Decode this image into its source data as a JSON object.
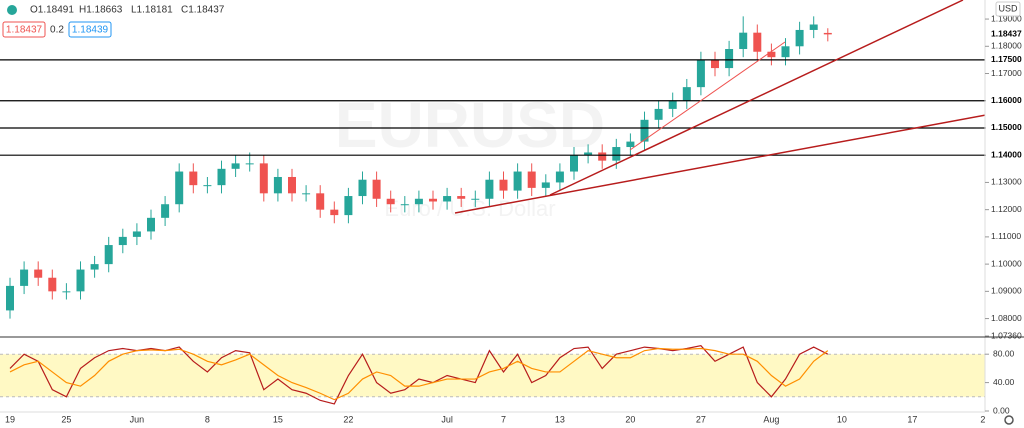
{
  "header": {
    "ohlc": [
      "O1.18491",
      "H1.18663",
      "L1.18181",
      "C1.18437"
    ],
    "sell": "1.18437",
    "spread": "0.2",
    "buy": "1.18439"
  },
  "chart_data": [
    {
      "type": "candlestick",
      "title": "EURUSD",
      "subtitle": "Euro / U.S. Dollar",
      "currency": "USD",
      "categories": [
        "19",
        null,
        null,
        null,
        "25",
        null,
        null,
        null,
        null,
        "Jun",
        null,
        null,
        null,
        null,
        "8",
        null,
        null,
        null,
        null,
        "15",
        null,
        null,
        null,
        null,
        "22",
        null,
        null,
        null,
        null,
        null,
        null,
        "Jul",
        null,
        null,
        null,
        "7",
        null,
        null,
        null,
        "13",
        null,
        null,
        null,
        null,
        "20",
        null,
        null,
        null,
        null,
        "27",
        null,
        null,
        null,
        null,
        "Aug",
        null,
        null,
        null,
        null,
        "10",
        null,
        null,
        null,
        null,
        "17",
        null,
        null,
        null,
        null,
        "2"
      ],
      "open": [
        1.083,
        1.092,
        1.098,
        1.095,
        1.09,
        1.09,
        1.098,
        1.1,
        1.107,
        1.11,
        1.112,
        1.117,
        1.122,
        1.134,
        1.129,
        1.129,
        1.135,
        1.137,
        1.137,
        1.126,
        1.132,
        1.126,
        1.126,
        1.12,
        1.118,
        1.125,
        1.131,
        1.124,
        1.122,
        1.122,
        1.124,
        1.123,
        1.125,
        1.124,
        1.124,
        1.131,
        1.127,
        1.134,
        1.128,
        1.13,
        1.134,
        1.14,
        1.141,
        1.138,
        1.143,
        1.145,
        1.153,
        1.157,
        1.16,
        1.165,
        1.175,
        1.172,
        1.179,
        1.185,
        1.178,
        1.176,
        1.18,
        1.186,
        1.18491,
        null,
        null,
        null,
        null,
        null,
        null,
        null,
        null,
        null,
        null,
        null
      ],
      "high": [
        1.095,
        1.101,
        1.101,
        1.098,
        1.093,
        1.101,
        1.103,
        1.11,
        1.113,
        1.115,
        1.12,
        1.125,
        1.137,
        1.137,
        1.132,
        1.138,
        1.14,
        1.141,
        1.14,
        1.135,
        1.135,
        1.129,
        1.129,
        1.123,
        1.128,
        1.134,
        1.134,
        1.127,
        1.125,
        1.127,
        1.127,
        1.128,
        1.128,
        1.127,
        1.134,
        1.134,
        1.137,
        1.137,
        1.133,
        1.137,
        1.143,
        1.144,
        1.144,
        1.146,
        1.148,
        1.156,
        1.16,
        1.163,
        1.168,
        1.178,
        1.178,
        1.182,
        1.191,
        1.188,
        1.181,
        1.183,
        1.189,
        1.191,
        1.18663,
        null,
        null,
        null,
        null,
        null,
        null,
        null,
        null,
        null,
        null,
        null
      ],
      "low": [
        1.08,
        1.089,
        1.092,
        1.087,
        1.087,
        1.087,
        1.095,
        1.097,
        1.104,
        1.107,
        1.109,
        1.114,
        1.119,
        1.126,
        1.126,
        1.126,
        1.132,
        1.134,
        1.123,
        1.123,
        1.123,
        1.123,
        1.117,
        1.115,
        1.115,
        1.122,
        1.121,
        1.119,
        1.119,
        1.119,
        1.12,
        1.12,
        1.121,
        1.121,
        1.121,
        1.124,
        1.124,
        1.125,
        1.125,
        1.127,
        1.131,
        1.137,
        1.135,
        1.135,
        1.14,
        1.142,
        1.15,
        1.154,
        1.157,
        1.162,
        1.169,
        1.169,
        1.176,
        1.175,
        1.173,
        1.173,
        1.177,
        1.183,
        1.18181,
        null,
        null,
        null,
        null,
        null,
        null,
        null,
        null,
        null,
        null,
        null
      ],
      "close": [
        1.092,
        1.098,
        1.095,
        1.09,
        1.09,
        1.098,
        1.1,
        1.107,
        1.11,
        1.112,
        1.117,
        1.122,
        1.134,
        1.129,
        1.129,
        1.135,
        1.137,
        1.137,
        1.126,
        1.132,
        1.126,
        1.126,
        1.12,
        1.118,
        1.125,
        1.131,
        1.124,
        1.122,
        1.122,
        1.124,
        1.123,
        1.125,
        1.124,
        1.124,
        1.131,
        1.127,
        1.134,
        1.128,
        1.13,
        1.134,
        1.14,
        1.141,
        1.138,
        1.143,
        1.145,
        1.153,
        1.157,
        1.16,
        1.165,
        1.175,
        1.172,
        1.179,
        1.185,
        1.178,
        1.176,
        1.18,
        1.186,
        1.188,
        1.18437,
        null,
        null,
        null,
        null,
        null,
        null,
        null,
        null,
        null,
        null,
        null
      ],
      "up_color": "#26a69a",
      "down_color": "#ef5350",
      "ylim": [
        1.0736,
        1.197
      ],
      "yticks": [
        {
          "value": 1.19,
          "label": "1.19000"
        },
        {
          "value": 1.18,
          "label": "1.18000"
        },
        {
          "value": 1.17,
          "label": "1.17000"
        },
        {
          "value": 1.16,
          "label": "1.16000"
        },
        {
          "value": 1.15,
          "label": "1.15000"
        },
        {
          "value": 1.14,
          "label": "1.14000"
        },
        {
          "value": 1.13,
          "label": "1.13000"
        },
        {
          "value": 1.12,
          "label": "1.12000"
        },
        {
          "value": 1.11,
          "label": "1.11000"
        },
        {
          "value": 1.1,
          "label": "1.10000"
        },
        {
          "value": 1.09,
          "label": "1.09000"
        },
        {
          "value": 1.08,
          "label": "1.08000"
        },
        {
          "value": 1.0736,
          "label": "1.07360"
        }
      ],
      "hlines": [
        {
          "value": 1.175,
          "label": "1.17500"
        },
        {
          "value": 1.16,
          "label": "1.16000"
        },
        {
          "value": 1.15,
          "label": "1.15000"
        },
        {
          "value": 1.14,
          "label": "1.14000"
        }
      ],
      "last_price": {
        "value": 1.18437,
        "label": "1.18437"
      }
    },
    {
      "type": "line",
      "series": [
        {
          "color": "#b71c1c",
          "values": [
            60,
            80,
            70,
            30,
            20,
            60,
            75,
            85,
            88,
            85,
            88,
            85,
            90,
            70,
            55,
            75,
            85,
            82,
            30,
            45,
            30,
            25,
            15,
            10,
            50,
            80,
            40,
            25,
            30,
            45,
            40,
            50,
            45,
            40,
            85,
            55,
            80,
            40,
            50,
            75,
            88,
            90,
            60,
            80,
            85,
            90,
            88,
            85,
            88,
            92,
            70,
            80,
            90,
            40,
            20,
            45,
            80,
            90,
            80,
            null,
            null,
            null,
            null,
            null,
            null,
            null,
            null,
            null,
            null,
            null
          ]
        },
        {
          "color": "#ff8f00",
          "values": [
            55,
            65,
            70,
            55,
            40,
            35,
            50,
            70,
            80,
            85,
            86,
            85,
            87,
            80,
            70,
            65,
            72,
            80,
            65,
            50,
            40,
            33,
            25,
            16,
            25,
            45,
            55,
            50,
            35,
            35,
            40,
            45,
            45,
            45,
            55,
            60,
            70,
            60,
            55,
            55,
            70,
            85,
            80,
            75,
            75,
            85,
            88,
            87,
            87,
            88,
            85,
            80,
            80,
            70,
            50,
            35,
            45,
            70,
            85,
            null,
            null,
            null,
            null,
            null,
            null,
            null,
            null,
            null,
            null,
            null
          ]
        }
      ],
      "band": [
        20,
        80
      ],
      "band_color": "#fff9c4",
      "ylim": [
        0,
        100
      ],
      "yticks": [
        {
          "value": 80,
          "label": "80.00"
        },
        {
          "value": 40,
          "label": "40.00"
        },
        {
          "value": 0,
          "label": "0.00"
        }
      ]
    }
  ]
}
